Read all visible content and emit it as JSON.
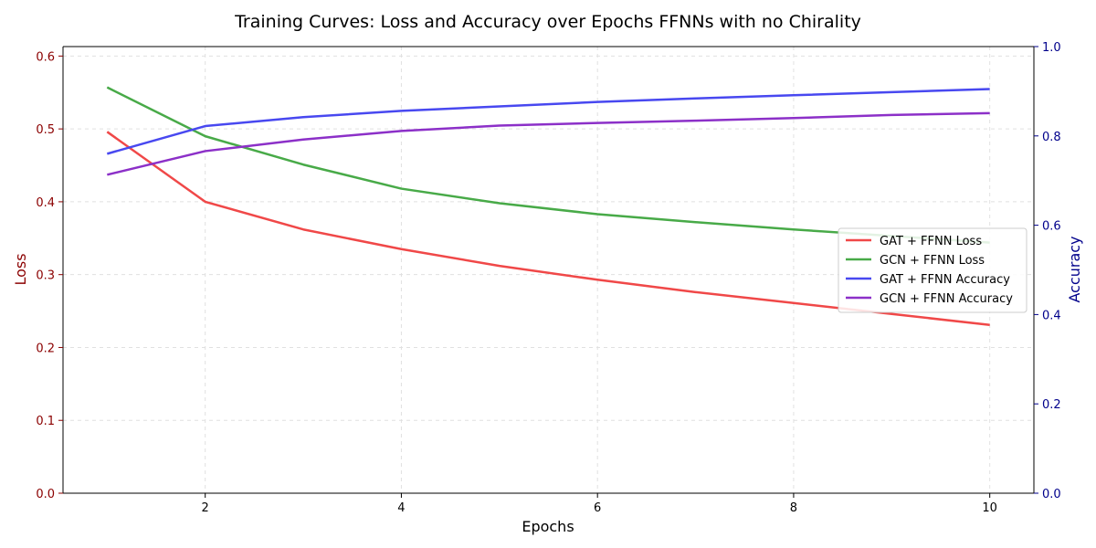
{
  "chart_data": {
    "type": "line",
    "title": "Training Curves: Loss and Accuracy over Epochs FFNNs with no Chirality",
    "xlabel": "Epochs",
    "ylabel_left": "Loss",
    "ylabel_right": "Accuracy",
    "x": [
      1,
      2,
      3,
      4,
      5,
      6,
      7,
      8,
      9,
      10
    ],
    "xlim": [
      0.55,
      10.45
    ],
    "x_ticks": [
      2,
      4,
      6,
      8,
      10
    ],
    "ylim_left": [
      0,
      0.613
    ],
    "y_ticks_left": [
      0.0,
      0.1,
      0.2,
      0.3,
      0.4,
      0.5,
      0.6
    ],
    "ylim_right": [
      0,
      1.0
    ],
    "y_ticks_right": [
      0.0,
      0.2,
      0.4,
      0.6,
      0.8,
      1.0
    ],
    "grid": true,
    "legend_position": "center-right",
    "series": [
      {
        "name": "GAT + FFNN Loss",
        "axis": "left",
        "color": "#f04848",
        "values": [
          0.496,
          0.4,
          0.362,
          0.335,
          0.312,
          0.293,
          0.276,
          0.261,
          0.246,
          0.231
        ]
      },
      {
        "name": "GCN + FFNN Loss",
        "axis": "left",
        "color": "#48aa48",
        "values": [
          0.557,
          0.49,
          0.451,
          0.418,
          0.398,
          0.383,
          0.372,
          0.362,
          0.353,
          0.344
        ]
      },
      {
        "name": "GAT + FFNN Accuracy",
        "axis": "right",
        "color": "#4848f0",
        "values": [
          0.76,
          0.822,
          0.842,
          0.856,
          0.866,
          0.876,
          0.884,
          0.891,
          0.898,
          0.905
        ]
      },
      {
        "name": "GCN + FFNN Accuracy",
        "axis": "right",
        "color": "#8c30c8",
        "values": [
          0.713,
          0.766,
          0.792,
          0.811,
          0.823,
          0.829,
          0.834,
          0.84,
          0.847,
          0.851
        ]
      }
    ],
    "colors": {
      "left_axis": "#8b0000",
      "right_axis": "#00008b",
      "grid": "#e0e0e0"
    }
  }
}
